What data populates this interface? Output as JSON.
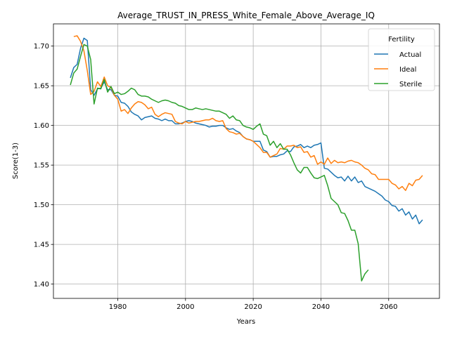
{
  "chart_data": {
    "type": "line",
    "title": "Average_TRUST_IN_PRESS_White_Female_Above_Average_IQ",
    "xlabel": "Years",
    "ylabel": "Score(1-3)",
    "xlim": [
      1961,
      2075
    ],
    "ylim": [
      1.382,
      1.728
    ],
    "xticks": [
      1980,
      2000,
      2020,
      2040,
      2060
    ],
    "xtick_labels": [
      "1980",
      "2000",
      "2020",
      "2040",
      "2060"
    ],
    "yticks": [
      1.4,
      1.45,
      1.5,
      1.55,
      1.6,
      1.65,
      1.7
    ],
    "ytick_labels": [
      "1.40",
      "1.45",
      "1.50",
      "1.55",
      "1.60",
      "1.65",
      "1.70"
    ],
    "grid": true,
    "legend": {
      "title": "Fertility",
      "placement": "upper right"
    },
    "series": [
      {
        "name": "Actual",
        "color": "#1f77b4",
        "x": [
          1966,
          1967,
          1968,
          1969,
          1970,
          1971,
          1972,
          1973,
          1974,
          1975,
          1976,
          1977,
          1978,
          1979,
          1980,
          1981,
          1982,
          1983,
          1984,
          1985,
          1986,
          1987,
          1988,
          1989,
          1990,
          1991,
          1992,
          1993,
          1994,
          1995,
          1996,
          1997,
          1998,
          1999,
          2000,
          2001,
          2002,
          2003,
          2004,
          2005,
          2006,
          2007,
          2008,
          2009,
          2010,
          2011,
          2012,
          2013,
          2014,
          2015,
          2016,
          2017,
          2018,
          2019,
          2020,
          2021,
          2022,
          2023,
          2024,
          2025,
          2026,
          2027,
          2028,
          2029,
          2030,
          2031,
          2032,
          2033,
          2034,
          2035,
          2036,
          2037,
          2038,
          2039,
          2040,
          2041,
          2042,
          2043,
          2044,
          2045,
          2046,
          2047,
          2048,
          2049,
          2050,
          2051,
          2052,
          2053,
          2054,
          2055,
          2056,
          2057,
          2058,
          2059,
          2060,
          2061,
          2062,
          2063,
          2064,
          2065,
          2066,
          2067,
          2068,
          2069,
          2070
        ],
        "y": [
          1.66,
          1.673,
          1.677,
          1.697,
          1.71,
          1.707,
          1.645,
          1.638,
          1.646,
          1.647,
          1.655,
          1.645,
          1.645,
          1.638,
          1.637,
          1.629,
          1.628,
          1.624,
          1.617,
          1.614,
          1.612,
          1.607,
          1.61,
          1.611,
          1.612,
          1.609,
          1.608,
          1.606,
          1.608,
          1.606,
          1.606,
          1.602,
          1.602,
          1.603,
          1.605,
          1.606,
          1.605,
          1.603,
          1.602,
          1.601,
          1.6,
          1.598,
          1.599,
          1.599,
          1.6,
          1.6,
          1.597,
          1.595,
          1.596,
          1.593,
          1.591,
          1.586,
          1.583,
          1.582,
          1.58,
          1.58,
          1.58,
          1.569,
          1.567,
          1.56,
          1.561,
          1.561,
          1.563,
          1.564,
          1.568,
          1.567,
          1.573,
          1.574,
          1.576,
          1.572,
          1.574,
          1.572,
          1.575,
          1.576,
          1.578,
          1.546,
          1.545,
          1.541,
          1.537,
          1.534,
          1.535,
          1.53,
          1.536,
          1.53,
          1.535,
          1.528,
          1.53,
          1.523,
          1.521,
          1.519,
          1.517,
          1.514,
          1.511,
          1.506,
          1.504,
          1.499,
          1.498,
          1.492,
          1.495,
          1.487,
          1.491,
          1.482,
          1.487,
          1.476,
          1.481
        ]
      },
      {
        "name": "Ideal",
        "color": "#ff7f0e",
        "x": [
          1967,
          1968,
          1969,
          1970,
          1971,
          1972,
          1973,
          1974,
          1975,
          1976,
          1977,
          1978,
          1979,
          1980,
          1981,
          1982,
          1983,
          1984,
          1985,
          1986,
          1987,
          1988,
          1989,
          1990,
          1991,
          1992,
          1993,
          1994,
          1995,
          1996,
          1997,
          1998,
          1999,
          2000,
          2001,
          2002,
          2003,
          2004,
          2005,
          2006,
          2007,
          2008,
          2009,
          2010,
          2011,
          2012,
          2013,
          2014,
          2015,
          2016,
          2017,
          2018,
          2019,
          2020,
          2021,
          2022,
          2023,
          2024,
          2025,
          2026,
          2027,
          2028,
          2029,
          2030,
          2031,
          2032,
          2033,
          2034,
          2035,
          2036,
          2037,
          2038,
          2039,
          2040,
          2041,
          2042,
          2043,
          2044,
          2045,
          2046,
          2047,
          2048,
          2049,
          2050,
          2051,
          2052,
          2053,
          2054,
          2055,
          2056,
          2057,
          2058,
          2059,
          2060,
          2061,
          2062,
          2063,
          2064,
          2065,
          2066,
          2067,
          2068,
          2069,
          2070
        ],
        "y": [
          1.712,
          1.713,
          1.706,
          1.694,
          1.669,
          1.639,
          1.643,
          1.655,
          1.649,
          1.661,
          1.65,
          1.648,
          1.638,
          1.633,
          1.618,
          1.62,
          1.615,
          1.622,
          1.627,
          1.63,
          1.629,
          1.626,
          1.621,
          1.623,
          1.614,
          1.611,
          1.614,
          1.616,
          1.615,
          1.614,
          1.605,
          1.603,
          1.602,
          1.605,
          1.603,
          1.604,
          1.605,
          1.605,
          1.606,
          1.607,
          1.607,
          1.609,
          1.606,
          1.605,
          1.606,
          1.596,
          1.592,
          1.591,
          1.589,
          1.59,
          1.586,
          1.583,
          1.582,
          1.58,
          1.576,
          1.572,
          1.566,
          1.566,
          1.56,
          1.562,
          1.564,
          1.571,
          1.57,
          1.574,
          1.574,
          1.575,
          1.572,
          1.573,
          1.566,
          1.567,
          1.56,
          1.562,
          1.551,
          1.554,
          1.551,
          1.559,
          1.552,
          1.556,
          1.553,
          1.554,
          1.553,
          1.555,
          1.556,
          1.554,
          1.553,
          1.55,
          1.546,
          1.544,
          1.539,
          1.538,
          1.532,
          1.532,
          1.532,
          1.532,
          1.527,
          1.525,
          1.52,
          1.523,
          1.518,
          1.527,
          1.524,
          1.531,
          1.532,
          1.537
        ]
      },
      {
        "name": "Sterile",
        "color": "#2ca02c",
        "x": [
          1966,
          1967,
          1968,
          1969,
          1970,
          1971,
          1972,
          1973,
          1974,
          1975,
          1976,
          1977,
          1978,
          1979,
          1980,
          1981,
          1982,
          1983,
          1984,
          1985,
          1986,
          1987,
          1988,
          1989,
          1990,
          1991,
          1992,
          1993,
          1994,
          1995,
          1996,
          1997,
          1998,
          1999,
          2000,
          2001,
          2002,
          2003,
          2004,
          2005,
          2006,
          2007,
          2008,
          2009,
          2010,
          2011,
          2012,
          2013,
          2014,
          2015,
          2016,
          2017,
          2018,
          2019,
          2020,
          2021,
          2022,
          2023,
          2024,
          2025,
          2026,
          2027,
          2028,
          2029,
          2030,
          2031,
          2032,
          2033,
          2034,
          2035,
          2036,
          2037,
          2038,
          2039,
          2040,
          2041,
          2042,
          2043,
          2044,
          2045,
          2046,
          2047,
          2048,
          2049,
          2050,
          2051,
          2052,
          2053,
          2054
        ],
        "y": [
          1.651,
          1.666,
          1.671,
          1.687,
          1.702,
          1.7,
          1.683,
          1.627,
          1.647,
          1.646,
          1.658,
          1.642,
          1.649,
          1.64,
          1.642,
          1.639,
          1.64,
          1.643,
          1.647,
          1.645,
          1.639,
          1.637,
          1.637,
          1.636,
          1.633,
          1.631,
          1.629,
          1.631,
          1.632,
          1.631,
          1.629,
          1.628,
          1.625,
          1.624,
          1.622,
          1.62,
          1.62,
          1.622,
          1.621,
          1.62,
          1.621,
          1.62,
          1.619,
          1.618,
          1.618,
          1.616,
          1.614,
          1.609,
          1.612,
          1.607,
          1.606,
          1.6,
          1.598,
          1.597,
          1.595,
          1.599,
          1.602,
          1.589,
          1.587,
          1.575,
          1.58,
          1.572,
          1.577,
          1.57,
          1.57,
          1.563,
          1.553,
          1.544,
          1.54,
          1.547,
          1.547,
          1.54,
          1.534,
          1.533,
          1.535,
          1.537,
          1.524,
          1.508,
          1.504,
          1.5,
          1.49,
          1.489,
          1.48,
          1.468,
          1.468,
          1.451,
          1.404,
          1.413,
          1.418
        ]
      }
    ]
  }
}
